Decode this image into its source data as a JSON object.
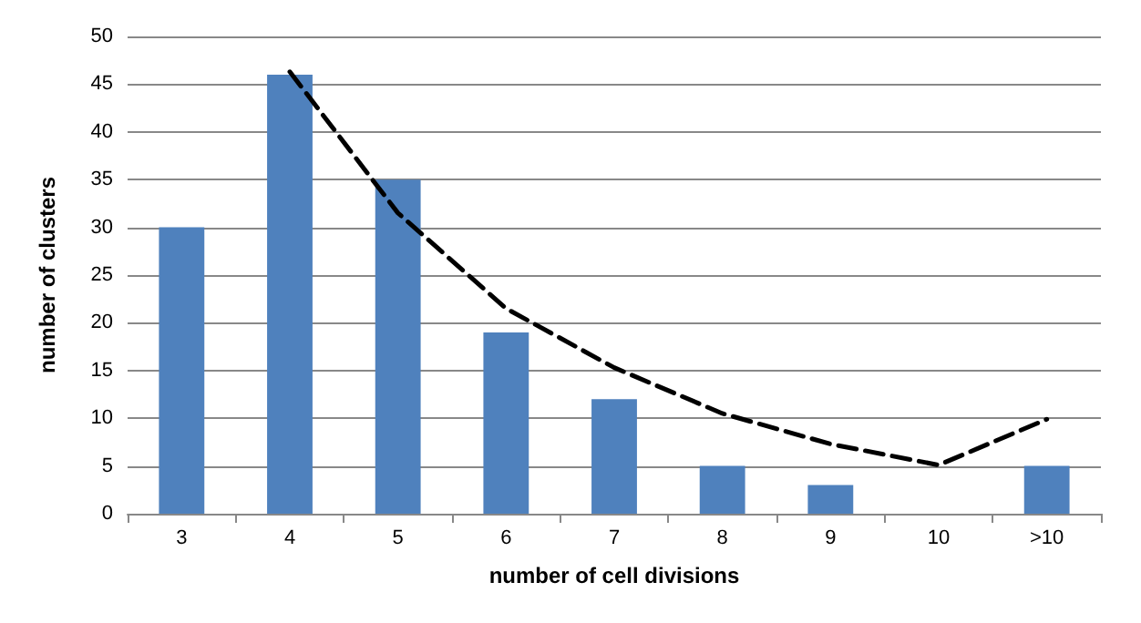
{
  "chart_data": {
    "type": "bar",
    "xlabel": "number of cell divisions",
    "ylabel": "number of clusters",
    "categories": [
      "3",
      "4",
      "5",
      "6",
      "7",
      "8",
      "9",
      "10",
      ">10"
    ],
    "series": [
      {
        "color": "#4f81bd",
        "values": [
          30,
          46,
          35,
          19,
          12,
          5,
          3,
          0,
          5
        ]
      },
      {
        "type": "line",
        "color": "#000000",
        "line_style": "dashed",
        "marker": "none",
        "values": [
          null,
          46.3,
          31.5,
          21.5,
          15.3,
          10.5,
          7.3,
          5.1,
          9.9
        ]
      }
    ],
    "ylim": [
      0,
      50
    ],
    "yticks": [
      0,
      5,
      10,
      15,
      20,
      25,
      30,
      35,
      40,
      45,
      50
    ],
    "grid": "y"
  }
}
